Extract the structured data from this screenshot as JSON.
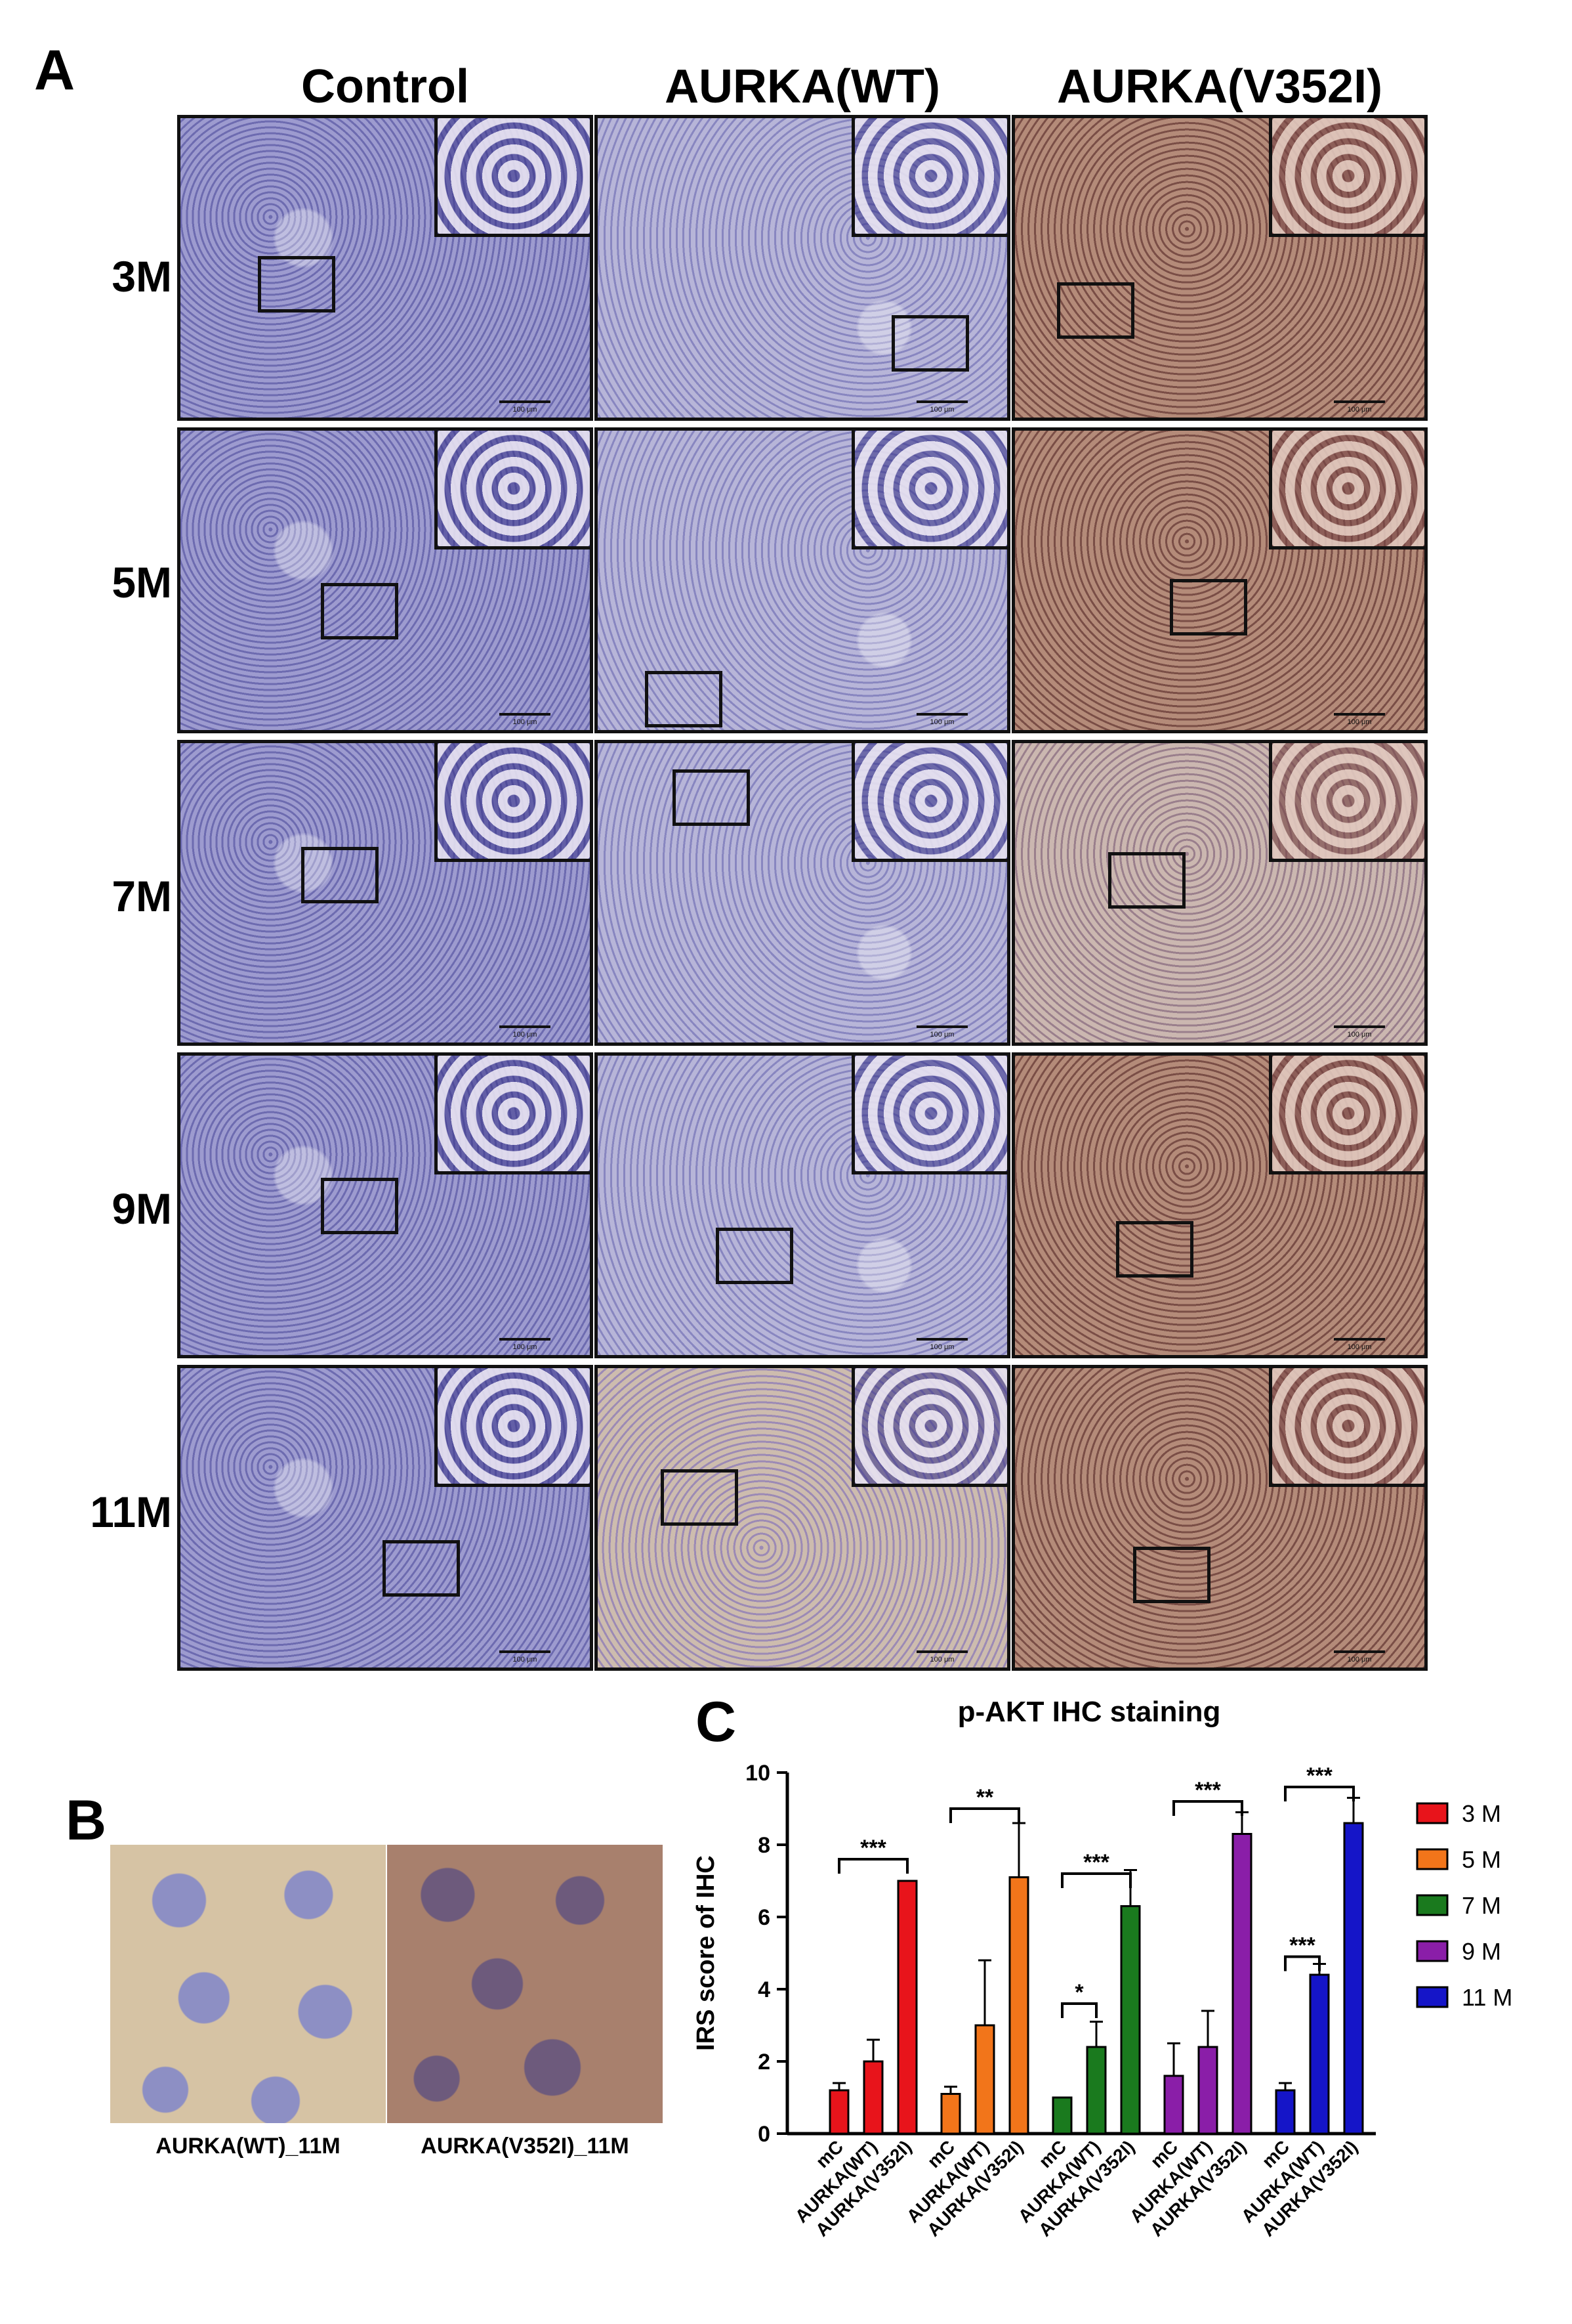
{
  "panel_a": {
    "letter": "A",
    "columns": [
      "Control",
      "AURKA(WT)",
      "AURKA(V352I)"
    ],
    "rows": [
      "3M",
      "5M",
      "7M",
      "9M",
      "11M"
    ],
    "scale_text": "100 μm"
  },
  "panel_b": {
    "letter": "B",
    "captions": [
      "AURKA(WT)_11M",
      "AURKA(V352I)_11M"
    ]
  },
  "panel_c": {
    "letter": "C"
  },
  "chart_data": {
    "type": "bar",
    "title": "p-AKT IHC staining",
    "ylabel": "IRS score of IHC",
    "xlabel": "",
    "ylim": [
      0,
      10
    ],
    "yticks": [
      0,
      2,
      4,
      6,
      8,
      10
    ],
    "categories": [
      "mC",
      "AURKA(WT)",
      "AURKA(V352I)"
    ],
    "legend_position": "right",
    "series": [
      {
        "name": "3 M",
        "color": "#e8141b",
        "values": [
          1.2,
          2.0,
          7.0
        ],
        "errors": [
          0.2,
          0.6,
          0
        ]
      },
      {
        "name": "5 M",
        "color": "#f2751a",
        "values": [
          1.1,
          3.0,
          7.1
        ],
        "errors": [
          0.2,
          1.8,
          1.5
        ]
      },
      {
        "name": "7 M",
        "color": "#1a7a1e",
        "values": [
          1.0,
          2.4,
          6.3
        ],
        "errors": [
          0,
          0.7,
          1.0
        ]
      },
      {
        "name": "9 M",
        "color": "#8a1ea8",
        "values": [
          1.6,
          2.4,
          8.3
        ],
        "errors": [
          0.9,
          1.0,
          0.6
        ]
      },
      {
        "name": "11 M",
        "color": "#1515c8",
        "values": [
          1.2,
          4.4,
          8.6
        ],
        "errors": [
          0.2,
          0.3,
          0.7
        ]
      }
    ],
    "significance": [
      {
        "series": 0,
        "from": 0,
        "to": 2,
        "y": 7.6,
        "label": "***"
      },
      {
        "series": 1,
        "from": 0,
        "to": 2,
        "y": 9.0,
        "label": "**"
      },
      {
        "series": 2,
        "from": 0,
        "to": 2,
        "y": 7.2,
        "label": "***"
      },
      {
        "series": 2,
        "from": 0,
        "to": 1,
        "y": 3.6,
        "label": "*"
      },
      {
        "series": 3,
        "from": 0,
        "to": 2,
        "y": 9.2,
        "label": "***"
      },
      {
        "series": 4,
        "from": 0,
        "to": 2,
        "y": 9.6,
        "label": "***"
      },
      {
        "series": 4,
        "from": 0,
        "to": 1,
        "y": 4.9,
        "label": "***"
      }
    ]
  }
}
